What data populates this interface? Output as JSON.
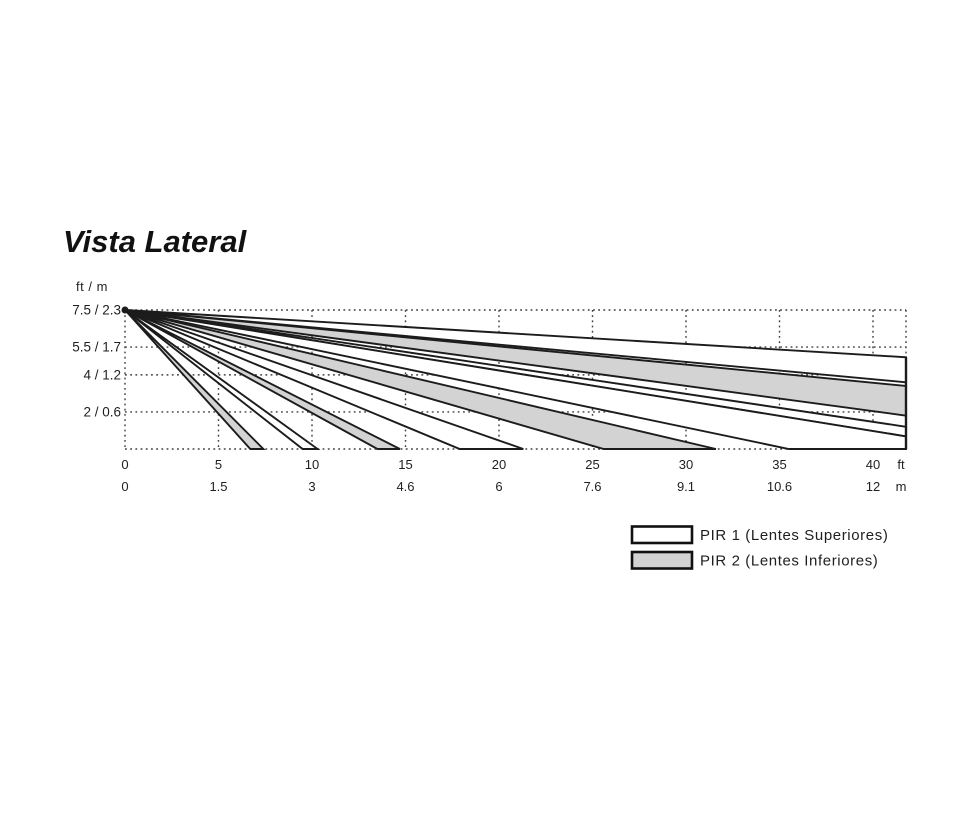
{
  "title": "Vista Lateral",
  "axis": {
    "unit_label": "ft / m",
    "y_ticks": [
      {
        "label": "7.5 / 2.3",
        "ft": 7.5
      },
      {
        "label": "5.5 / 1.7",
        "ft": 5.5
      },
      {
        "label": "4 / 1.2",
        "ft": 4
      },
      {
        "label": "2 / 0.6",
        "ft": 2
      }
    ],
    "y_base_ft": 0,
    "x_ticks": [
      {
        "ft_label": "0",
        "m_label": "0",
        "ft": 0
      },
      {
        "ft_label": "5",
        "m_label": "1.5",
        "ft": 5
      },
      {
        "ft_label": "10",
        "m_label": "3",
        "ft": 10
      },
      {
        "ft_label": "15",
        "m_label": "4.6",
        "ft": 15
      },
      {
        "ft_label": "20",
        "m_label": "6",
        "ft": 20
      },
      {
        "ft_label": "25",
        "m_label": "7.6",
        "ft": 25
      },
      {
        "ft_label": "30",
        "m_label": "9.1",
        "ft": 30
      },
      {
        "ft_label": "35",
        "m_label": "10.6",
        "ft": 35
      },
      {
        "ft_label": "40",
        "m_label": "12",
        "ft": 40
      }
    ],
    "x_unit_ft": "ft",
    "x_unit_m": "m"
  },
  "sensor": {
    "mount_height_ft": 7.5,
    "max_range_ft": 41.8
  },
  "beams": [
    {
      "pir": 1,
      "fill": "white",
      "type": "range",
      "top_h": 4.95,
      "bottom_h": 3.6
    },
    {
      "pir": 2,
      "fill": "gray",
      "type": "range",
      "top_h": 3.4,
      "bottom_h": 1.8
    },
    {
      "pir": 1,
      "fill": "white",
      "type": "range",
      "top_h": 1.2,
      "bottom_h": 0.68
    },
    {
      "pir": 1,
      "fill": "white",
      "type": "corner",
      "top_h": 0.68,
      "floor_x": 35.5
    },
    {
      "pir": 2,
      "fill": "gray",
      "type": "floor",
      "far_x": 31.6,
      "near_x": 25.6
    },
    {
      "pir": 1,
      "fill": "white",
      "type": "floor",
      "far_x": 21.3,
      "near_x": 17.9
    },
    {
      "pir": 2,
      "fill": "gray",
      "type": "floor",
      "far_x": 14.7,
      "near_x": 13.5
    },
    {
      "pir": 1,
      "fill": "white",
      "type": "floor",
      "far_x": 10.3,
      "near_x": 9.5
    },
    {
      "pir": 2,
      "fill": "gray",
      "type": "floor",
      "far_x": 7.4,
      "near_x": 6.7
    }
  ],
  "legend": [
    {
      "swatch": "white",
      "label": "PIR 1 (Lentes Superiores)"
    },
    {
      "swatch": "gray",
      "label": "PIR 2 (Lentes Inferiores)"
    }
  ],
  "colors": {
    "beam_line": "#1c1c1c",
    "gray_fill": "#d3d3d3",
    "grid": "#3f3f3f",
    "text": "#1f1f1f"
  }
}
